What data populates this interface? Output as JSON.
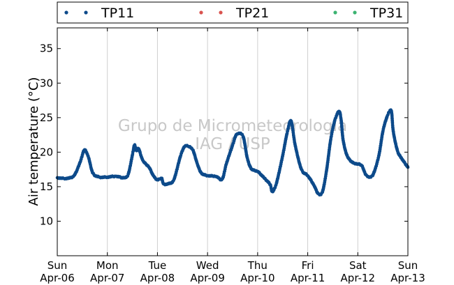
{
  "chart_data": {
    "type": "scatter",
    "title": "",
    "xlabel": "",
    "ylabel": "Air temperature (°C)",
    "ylim": [
      5,
      38
    ],
    "yticks": [
      10,
      15,
      20,
      25,
      30,
      35
    ],
    "xlim": [
      "2014-04-06 00:00",
      "2014-04-13 00:00"
    ],
    "xticks": [
      {
        "day": "Sun",
        "date": "Apr-06"
      },
      {
        "day": "Mon",
        "date": "Apr-07"
      },
      {
        "day": "Tue",
        "date": "Apr-08"
      },
      {
        "day": "Wed",
        "date": "Apr-09"
      },
      {
        "day": "Thu",
        "date": "Apr-10"
      },
      {
        "day": "Fri",
        "date": "Apr-11"
      },
      {
        "day": "Sat",
        "date": "Apr-12"
      },
      {
        "day": "Sun",
        "date": "Apr-13"
      }
    ],
    "grid": "vertical",
    "legend_position": "top",
    "watermark": [
      "Grupo de Micrometeorologia",
      "IAG / USP"
    ],
    "series": [
      {
        "name": "TP11",
        "color": "#0d4a8a",
        "points": [
          [
            "2014-04-06 00:00",
            16.3
          ],
          [
            "2014-04-06 04:00",
            16.2
          ],
          [
            "2014-04-06 08:00",
            16.6
          ],
          [
            "2014-04-06 11:00",
            18.6
          ],
          [
            "2014-04-06 13:00",
            20.3
          ],
          [
            "2014-04-06 15:00",
            19.2
          ],
          [
            "2014-04-06 17:00",
            17.0
          ],
          [
            "2014-04-06 20:00",
            16.4
          ],
          [
            "2014-04-07 00:00",
            16.4
          ],
          [
            "2014-04-07 04:00",
            16.5
          ],
          [
            "2014-04-07 08:00",
            16.3
          ],
          [
            "2014-04-07 10:00",
            16.8
          ],
          [
            "2014-04-07 12:00",
            19.6
          ],
          [
            "2014-04-07 13:00",
            21.0
          ],
          [
            "2014-04-07 14:00",
            20.2
          ],
          [
            "2014-04-07 15:00",
            20.5
          ],
          [
            "2014-04-07 17:00",
            18.8
          ],
          [
            "2014-04-07 20:00",
            17.8
          ],
          [
            "2014-04-07 22:00",
            16.6
          ],
          [
            "2014-04-08 00:00",
            16.0
          ],
          [
            "2014-04-08 02:00",
            16.2
          ],
          [
            "2014-04-08 03:00",
            15.4
          ],
          [
            "2014-04-08 06:00",
            15.5
          ],
          [
            "2014-04-08 08:00",
            16.1
          ],
          [
            "2014-04-08 11:00",
            19.4
          ],
          [
            "2014-04-08 13:00",
            20.8
          ],
          [
            "2014-04-08 15:00",
            20.8
          ],
          [
            "2014-04-08 17:00",
            20.3
          ],
          [
            "2014-04-08 19:00",
            18.4
          ],
          [
            "2014-04-08 21:00",
            17.0
          ],
          [
            "2014-04-09 00:00",
            16.6
          ],
          [
            "2014-04-09 04:00",
            16.5
          ],
          [
            "2014-04-09 07:00",
            16.1
          ],
          [
            "2014-04-09 09:00",
            18.3
          ],
          [
            "2014-04-09 12:00",
            21.0
          ],
          [
            "2014-04-09 14:00",
            22.6
          ],
          [
            "2014-04-09 17:00",
            22.3
          ],
          [
            "2014-04-09 19:00",
            19.2
          ],
          [
            "2014-04-09 21:00",
            17.6
          ],
          [
            "2014-04-10 00:00",
            17.2
          ],
          [
            "2014-04-10 03:00",
            16.3
          ],
          [
            "2014-04-10 06:00",
            15.3
          ],
          [
            "2014-04-10 07:00",
            14.3
          ],
          [
            "2014-04-10 09:00",
            15.5
          ],
          [
            "2014-04-10 12:00",
            19.5
          ],
          [
            "2014-04-10 14:00",
            22.6
          ],
          [
            "2014-04-10 16:00",
            24.5
          ],
          [
            "2014-04-10 18:00",
            21.0
          ],
          [
            "2014-04-10 21:00",
            17.5
          ],
          [
            "2014-04-11 00:00",
            16.6
          ],
          [
            "2014-04-11 03:00",
            15.2
          ],
          [
            "2014-04-11 05:00",
            14.0
          ],
          [
            "2014-04-11 07:00",
            14.2
          ],
          [
            "2014-04-11 09:00",
            17.3
          ],
          [
            "2014-04-11 11:00",
            21.8
          ],
          [
            "2014-04-11 13:00",
            24.6
          ],
          [
            "2014-04-11 15:00",
            25.9
          ],
          [
            "2014-04-11 16:00",
            24.7
          ],
          [
            "2014-04-11 17:00",
            21.7
          ],
          [
            "2014-04-11 19:00",
            19.4
          ],
          [
            "2014-04-11 22:00",
            18.4
          ],
          [
            "2014-04-12 00:00",
            18.3
          ],
          [
            "2014-04-12 02:00",
            18.0
          ],
          [
            "2014-04-12 04:00",
            16.7
          ],
          [
            "2014-04-12 07:00",
            16.6
          ],
          [
            "2014-04-12 10:00",
            19.4
          ],
          [
            "2014-04-12 12:00",
            23.0
          ],
          [
            "2014-04-12 14:00",
            25.1
          ],
          [
            "2014-04-12 16:00",
            26.0
          ],
          [
            "2014-04-12 17:00",
            23.0
          ],
          [
            "2014-04-12 19:00",
            20.2
          ],
          [
            "2014-04-12 21:00",
            19.1
          ],
          [
            "2014-04-13 00:00",
            17.8
          ]
        ]
      },
      {
        "name": "TP21",
        "color": "#d9534f",
        "points": []
      },
      {
        "name": "TP31",
        "color": "#3cb371",
        "points": []
      }
    ]
  }
}
